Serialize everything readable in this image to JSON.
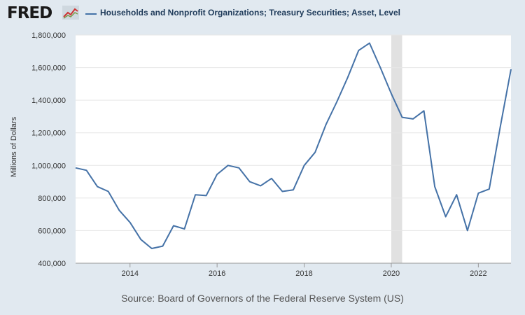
{
  "header": {
    "logo_text": "FRED",
    "logo_icon": "line-chart-icon",
    "series_title": "Households and Nonprofit Organizations; Treasury Securities; Asset, Level"
  },
  "footer": {
    "source": "Source: Board of Governors of the Federal Reserve System (US)"
  },
  "colors": {
    "series": "#4572a7",
    "recession": "#e1e1e1",
    "page_background": "#e1e9f0",
    "plot_background": "#ffffff",
    "logo_red": "#c33"
  },
  "chart_data": {
    "type": "line",
    "ylabel": "Millions of Dollars",
    "xlabel": "",
    "xlim": [
      2012.75,
      2022.75
    ],
    "ylim": [
      400000,
      1800000
    ],
    "yticks": [
      400000,
      600000,
      800000,
      1000000,
      1200000,
      1400000,
      1600000,
      1800000
    ],
    "ytick_labels": [
      "400,000",
      "600,000",
      "800,000",
      "1,000,000",
      "1,200,000",
      "1,400,000",
      "1,600,000",
      "1,800,000"
    ],
    "xticks": [
      2014,
      2016,
      2018,
      2020,
      2022
    ],
    "xtick_labels": [
      "2014",
      "2016",
      "2018",
      "2020",
      "2022"
    ],
    "grid": "horizontal",
    "recession_shading": [
      [
        2020.0,
        2020.25
      ]
    ],
    "series": [
      {
        "x": [
          2012.75,
          2013.0,
          2013.25,
          2013.5,
          2013.75,
          2014.0,
          2014.25,
          2014.5,
          2014.75,
          2015.0,
          2015.25,
          2015.5,
          2015.75,
          2016.0,
          2016.25,
          2016.5,
          2016.75,
          2017.0,
          2017.25,
          2017.5,
          2017.75,
          2018.0,
          2018.25,
          2018.5,
          2018.75,
          2019.0,
          2019.25,
          2019.5,
          2019.75,
          2020.0,
          2020.25,
          2020.5,
          2020.75,
          2021.0,
          2021.25,
          2021.5,
          2021.75,
          2022.0,
          2022.25,
          2022.5,
          2022.75
        ],
        "values": [
          985000,
          970000,
          870000,
          840000,
          725000,
          650000,
          545000,
          490000,
          505000,
          630000,
          610000,
          820000,
          815000,
          945000,
          1000000,
          985000,
          900000,
          875000,
          920000,
          840000,
          850000,
          1000000,
          1080000,
          1250000,
          1390000,
          1540000,
          1705000,
          1750000,
          1600000,
          1440000,
          1295000,
          1285000,
          1335000,
          870000,
          685000,
          820000,
          600000,
          830000,
          855000,
          1230000,
          1590000
        ]
      }
    ]
  }
}
